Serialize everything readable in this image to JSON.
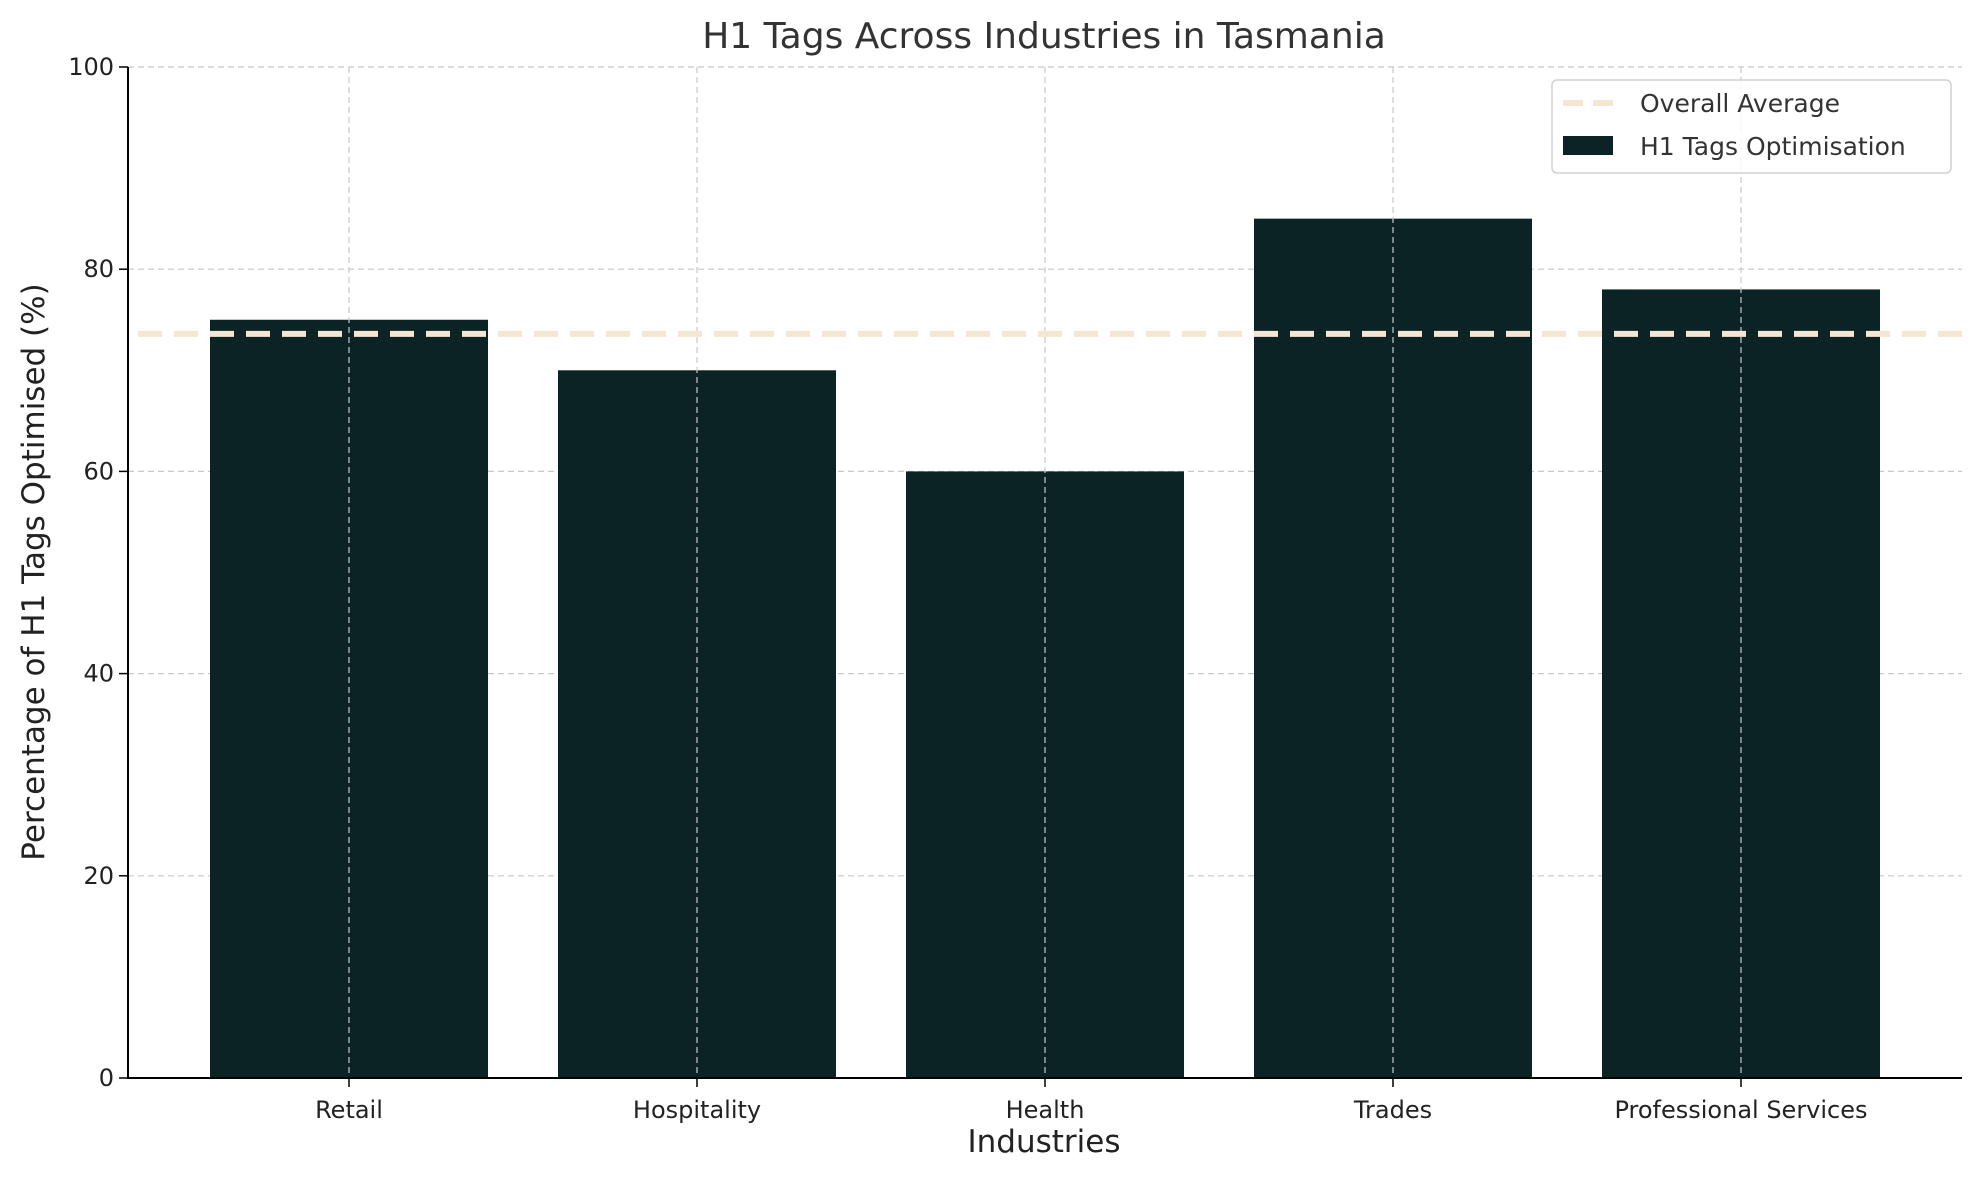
{
  "chart_data": {
    "type": "bar",
    "title": "H1 Tags Across Industries in Tasmania",
    "xlabel": "Industries",
    "ylabel": "Percentage of H1 Tags Optimised (%)",
    "categories": [
      "Retail",
      "Hospitality",
      "Health",
      "Trades",
      "Professional Services"
    ],
    "series": [
      {
        "name": "H1 Tags Optimisation",
        "values": [
          75,
          70,
          60,
          85,
          78
        ]
      }
    ],
    "reference_lines": [
      {
        "name": "Overall Average",
        "value": 73.6,
        "style": "dashed"
      }
    ],
    "ylim": [
      0,
      100
    ],
    "yticks": [
      0,
      20,
      40,
      60,
      80,
      100
    ],
    "grid": true,
    "legend_position": "top-right",
    "colors": {
      "bar": "#0c2326",
      "average_line": "#f5e6d3",
      "grid": "#c8c8c8",
      "axis": "#000000"
    }
  }
}
